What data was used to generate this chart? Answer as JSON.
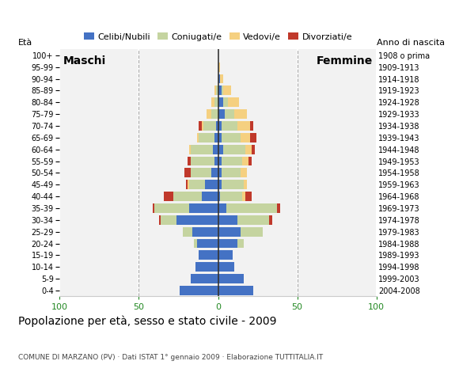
{
  "age_groups": [
    "0-4",
    "5-9",
    "10-14",
    "15-19",
    "20-24",
    "25-29",
    "30-34",
    "35-39",
    "40-44",
    "45-49",
    "50-54",
    "55-59",
    "60-64",
    "65-69",
    "70-74",
    "75-79",
    "80-84",
    "85-89",
    "90-94",
    "95-99",
    "100+"
  ],
  "birth_years": [
    "2004-2008",
    "1999-2003",
    "1994-1998",
    "1989-1993",
    "1984-1988",
    "1979-1983",
    "1974-1978",
    "1969-1973",
    "1964-1968",
    "1959-1963",
    "1954-1958",
    "1949-1953",
    "1944-1948",
    "1939-1943",
    "1934-1938",
    "1929-1933",
    "1924-1928",
    "1919-1923",
    "1914-1918",
    "1909-1913",
    "1908 o prima"
  ],
  "males_cel": [
    24,
    17,
    14,
    12,
    13,
    16,
    26,
    18,
    10,
    8,
    4,
    2,
    3,
    2,
    1,
    0,
    0,
    0,
    0,
    0,
    0
  ],
  "males_con": [
    0,
    0,
    0,
    0,
    2,
    6,
    10,
    22,
    18,
    10,
    13,
    15,
    14,
    10,
    8,
    4,
    2,
    1,
    0,
    0,
    0
  ],
  "males_ved": [
    0,
    0,
    0,
    0,
    0,
    0,
    0,
    0,
    0,
    1,
    0,
    0,
    1,
    1,
    1,
    3,
    2,
    1,
    0,
    0,
    0
  ],
  "males_div": [
    0,
    0,
    0,
    0,
    0,
    0,
    1,
    1,
    6,
    1,
    4,
    2,
    0,
    0,
    2,
    0,
    0,
    0,
    0,
    0,
    0
  ],
  "females_cel": [
    22,
    16,
    10,
    9,
    12,
    14,
    12,
    5,
    1,
    2,
    2,
    2,
    3,
    2,
    2,
    4,
    3,
    2,
    1,
    0,
    0
  ],
  "females_con": [
    0,
    0,
    0,
    0,
    4,
    14,
    20,
    32,
    14,
    14,
    12,
    13,
    14,
    12,
    10,
    6,
    3,
    1,
    0,
    0,
    0
  ],
  "females_ved": [
    0,
    0,
    0,
    0,
    0,
    0,
    0,
    0,
    2,
    2,
    4,
    4,
    4,
    6,
    8,
    8,
    7,
    5,
    2,
    1,
    0
  ],
  "females_div": [
    0,
    0,
    0,
    0,
    0,
    0,
    2,
    2,
    4,
    0,
    0,
    2,
    2,
    4,
    2,
    0,
    0,
    0,
    0,
    0,
    0
  ],
  "color_cel": "#4472c4",
  "color_con": "#c5d4a0",
  "color_ved": "#f5d080",
  "color_div": "#c0392b",
  "legend_labels": [
    "Celibi/Nubili",
    "Coniugati/e",
    "Vedovi/e",
    "Divorziati/e"
  ],
  "title": "Popolazione per età, sesso e stato civile - 2009",
  "subtitle": "COMUNE DI MARZANO (PV) · Dati ISTAT 1° gennaio 2009 · Elaborazione TUTTITALIA.IT",
  "label_maschi": "Maschi",
  "label_femmine": "Femmine",
  "label_eta": "Età",
  "label_anno": "Anno di nascita",
  "xlim": 100,
  "bg_color": "#ffffff",
  "plot_bg": "#f2f2f2"
}
